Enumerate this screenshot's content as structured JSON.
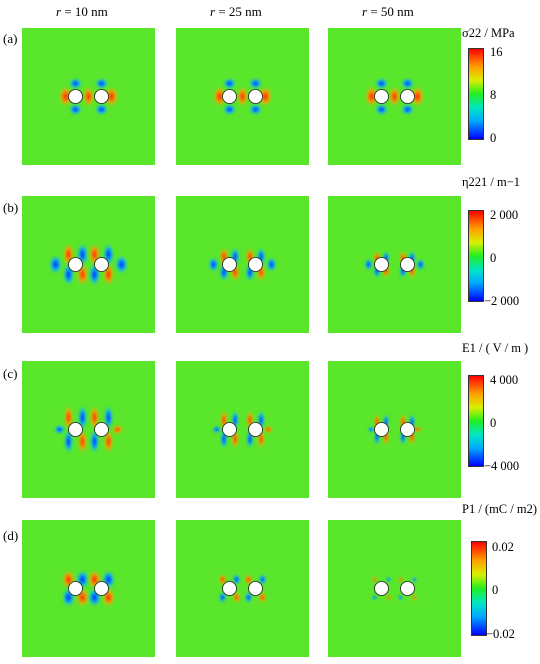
{
  "columns": [
    {
      "prefix": "r",
      "text": " = 10 nm"
    },
    {
      "prefix": "r",
      "text": " = 25 nm"
    },
    {
      "prefix": "r",
      "text": " = 50 nm"
    }
  ],
  "rows": [
    {
      "label": "(a)",
      "title": "σ22 / MPa",
      "ticks": [
        "16",
        "8",
        "0"
      ]
    },
    {
      "label": "(b)",
      "title": "η221 / m−1",
      "ticks": [
        "2 000",
        "0",
        "−2 000"
      ]
    },
    {
      "label": "(c)",
      "title": "E1 / ( V / m )",
      "ticks": [
        "4 000",
        "0",
        "−4 000"
      ]
    },
    {
      "label": "(d)",
      "title": "P1 / (mC / m2)",
      "ticks": [
        "0.02",
        "0",
        "−0.02"
      ]
    }
  ],
  "colors": {
    "background_field": "#5ae62a",
    "high": "#ff0000",
    "mid_high": "#ffa000",
    "low": "#0000ff",
    "mid_low": "#00b4ff",
    "hole": "#ffffff"
  }
}
